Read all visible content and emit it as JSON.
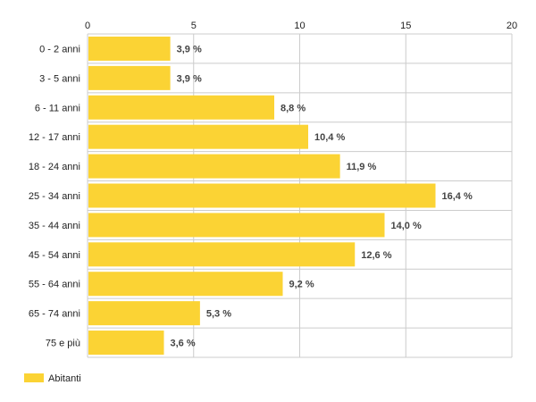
{
  "chart_data": {
    "type": "bar",
    "orientation": "horizontal",
    "categories": [
      "0 - 2 anni",
      "3 - 5 anni",
      "6 - 11 anni",
      "12 - 17 anni",
      "18 - 24 anni",
      "25 - 34 anni",
      "35 - 44 anni",
      "45 - 54 anni",
      "55 - 64 anni",
      "65 - 74 anni",
      "75 e più"
    ],
    "series": [
      {
        "name": "Abitanti",
        "values": [
          3.9,
          3.9,
          8.8,
          10.4,
          11.9,
          16.4,
          14.0,
          12.6,
          9.2,
          5.3,
          3.6
        ],
        "value_labels": [
          "3,9 %",
          "3,9 %",
          "8,8 %",
          "10,4 %",
          "11,9 %",
          "16,4 %",
          "14,0 %",
          "12,6 %",
          "9,2 %",
          "5,3 %",
          "3,6 %"
        ]
      }
    ],
    "xlim": [
      0,
      20
    ],
    "xticks": [
      0,
      5,
      10,
      15,
      20
    ],
    "xtick_labels": [
      "0",
      "5",
      "10",
      "15",
      "20"
    ],
    "axis_position": "top",
    "grid": true,
    "legend_position": "bottom-left",
    "bar_color": "#FBD334",
    "grid_color": "#CCCCCC"
  },
  "legend": {
    "label": "Abitanti"
  }
}
